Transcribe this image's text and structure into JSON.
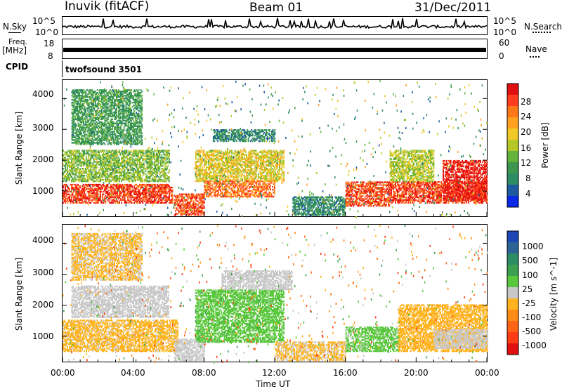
{
  "header": {
    "station": "Inuvik (fitACF)",
    "beam": "Beam 01",
    "date": "31/Dec/2011"
  },
  "strip_panels": {
    "nsky_label": "N.Sky",
    "nsky_ticks": [
      "10^5",
      "10^0"
    ],
    "nsearch_label": "N.Search",
    "nsearch_ticks": [
      "10^5",
      "10^0"
    ],
    "freq_label": "Freq.",
    "freq_unit": "[MHz]",
    "freq_ticks": [
      "18",
      "8"
    ],
    "nave_label": "Nave",
    "nave_ticks": [
      "60",
      "0"
    ],
    "cpid_label": "CPID",
    "cpid_value": "twofsound 3501"
  },
  "axes": {
    "x_ticks": [
      "00:00",
      "04:00",
      "08:00",
      "12:00",
      "16:00",
      "20:00",
      "00:00"
    ],
    "x_label": "Time UT",
    "y_ticks": [
      "4000",
      "3000",
      "2000",
      "1000"
    ],
    "y_label": "Slant Range [km]"
  },
  "colorbars": {
    "power": {
      "label": "Power [dB]",
      "ticks": [
        "28",
        "24",
        "20",
        "16",
        "12",
        "8",
        "4"
      ],
      "colors": [
        "#e01010",
        "#ff3c1e",
        "#ff7818",
        "#ffa020",
        "#f0c828",
        "#b4c828",
        "#64b43c",
        "#3c9650",
        "#2c8c64",
        "#1e5aa0",
        "#0a28e6"
      ]
    },
    "velocity": {
      "label": "Velocity [m s^-1]",
      "ticks": [
        "1000",
        "500",
        "100",
        "25",
        "-25",
        "-100",
        "-500",
        "-1000"
      ],
      "colors": [
        "#1e46b4",
        "#2c6496",
        "#2c8c64",
        "#3ca050",
        "#5ac83c",
        "#c8c8c8",
        "#ffb41e",
        "#ff8c14",
        "#ff6414",
        "#ff3c14",
        "#e01010"
      ]
    }
  },
  "chart_data": [
    {
      "type": "heatmap",
      "title": "Power",
      "xlabel": "Time UT",
      "ylabel": "Slant Range [km]",
      "xlim": [
        0,
        24
      ],
      "ylim": [
        180,
        4600
      ],
      "colorbar_label": "Power [dB]",
      "colorbar_range": [
        0,
        32
      ],
      "echo_bands": [
        {
          "t0": 0.0,
          "t1": 6.2,
          "r0": 600,
          "r1": 1200,
          "value": 28
        },
        {
          "t0": 0.0,
          "t1": 6.0,
          "r0": 1300,
          "r1": 2300,
          "value": 14
        },
        {
          "t0": 0.5,
          "t1": 4.5,
          "r0": 2500,
          "r1": 4300,
          "value": 10
        },
        {
          "t0": 6.3,
          "t1": 8.0,
          "r0": 200,
          "r1": 900,
          "value": 27
        },
        {
          "t0": 7.5,
          "t1": 12.5,
          "r0": 1300,
          "r1": 2300,
          "value": 18
        },
        {
          "t0": 8.0,
          "t1": 12.0,
          "r0": 800,
          "r1": 1300,
          "value": 25
        },
        {
          "t0": 8.5,
          "t1": 12.0,
          "r0": 2600,
          "r1": 3000,
          "value": 8
        },
        {
          "t0": 13.0,
          "t1": 16.0,
          "r0": 200,
          "r1": 800,
          "value": 8
        },
        {
          "t0": 16.0,
          "t1": 18.5,
          "r0": 500,
          "r1": 1300,
          "value": 27
        },
        {
          "t0": 18.5,
          "t1": 24.0,
          "r0": 600,
          "r1": 1300,
          "value": 28
        },
        {
          "t0": 18.5,
          "t1": 21.0,
          "r0": 1300,
          "r1": 2300,
          "value": 16
        },
        {
          "t0": 21.5,
          "t1": 24.0,
          "r0": 700,
          "r1": 2000,
          "value": 30
        }
      ]
    },
    {
      "type": "heatmap",
      "title": "Velocity",
      "xlabel": "Time UT",
      "ylabel": "Slant Range [km]",
      "xlim": [
        0,
        24
      ],
      "ylim": [
        180,
        4600
      ],
      "colorbar_label": "Velocity [m s^-1]",
      "colorbar_range": [
        -1000,
        1000
      ],
      "echo_bands": [
        {
          "t0": 0.0,
          "t1": 6.5,
          "r0": 500,
          "r1": 1500,
          "value": -150
        },
        {
          "t0": 0.5,
          "t1": 6.0,
          "r0": 1600,
          "r1": 2600,
          "value": 0
        },
        {
          "t0": 0.5,
          "t1": 4.5,
          "r0": 2800,
          "r1": 4300,
          "value": -120
        },
        {
          "t0": 6.3,
          "t1": 8.0,
          "r0": 200,
          "r1": 900,
          "value": 0
        },
        {
          "t0": 7.5,
          "t1": 12.5,
          "r0": 800,
          "r1": 2500,
          "value": 200
        },
        {
          "t0": 9.0,
          "t1": 13.0,
          "r0": 2500,
          "r1": 3100,
          "value": 0
        },
        {
          "t0": 12.0,
          "t1": 16.0,
          "r0": 200,
          "r1": 800,
          "value": -120
        },
        {
          "t0": 16.0,
          "t1": 19.0,
          "r0": 500,
          "r1": 1300,
          "value": 150
        },
        {
          "t0": 19.0,
          "t1": 24.0,
          "r0": 500,
          "r1": 2000,
          "value": -200
        },
        {
          "t0": 21.0,
          "t1": 24.0,
          "r0": 600,
          "r1": 1200,
          "value": 0
        }
      ]
    }
  ]
}
